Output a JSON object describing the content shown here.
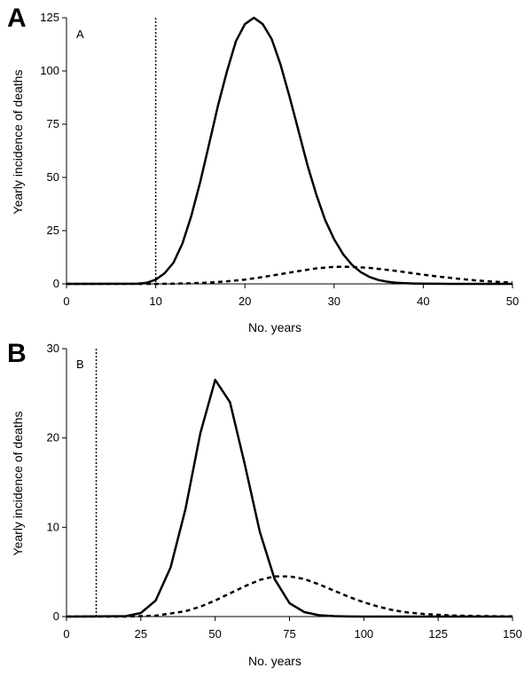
{
  "chart_data": [
    {
      "type": "line",
      "panel_letter": "A",
      "inset_label": "A",
      "xlabel": "No. years",
      "ylabel": "Yearly incidence of deaths",
      "xlim": [
        0,
        50
      ],
      "ylim": [
        0,
        125
      ],
      "x_ticks": [
        "0",
        "10",
        "20",
        "30",
        "40",
        "50"
      ],
      "y_ticks": [
        "0",
        "25",
        "50",
        "75",
        "100",
        "125"
      ],
      "grid": false,
      "legend": "none",
      "vline": {
        "x": 10,
        "style": "dotted"
      },
      "series": [
        {
          "style": "solid",
          "x": [
            0,
            8,
            9,
            10,
            11,
            12,
            13,
            14,
            15,
            16,
            17,
            18,
            19,
            20,
            21,
            22,
            23,
            24,
            25,
            26,
            27,
            28,
            29,
            30,
            31,
            32,
            33,
            34,
            35,
            36,
            37,
            38,
            39,
            40,
            42,
            44,
            46,
            48,
            50
          ],
          "y": [
            0,
            0.1,
            0.5,
            2,
            5,
            10,
            19,
            32,
            48,
            66,
            84,
            100,
            114,
            122,
            125,
            122,
            115,
            103,
            88,
            72,
            56,
            42,
            30,
            21,
            14,
            9,
            5.5,
            3.2,
            1.8,
            1,
            0.5,
            0.3,
            0.15,
            0.08,
            0.03,
            0,
            0,
            0,
            0
          ]
        },
        {
          "style": "dashed",
          "x": [
            0,
            10,
            12,
            14,
            16,
            18,
            20,
            22,
            24,
            26,
            28,
            30,
            32,
            34,
            36,
            38,
            40,
            42,
            44,
            46,
            48,
            50
          ],
          "y": [
            0,
            0,
            0.1,
            0.3,
            0.6,
            1.2,
            2,
            3.2,
            4.6,
            6,
            7.3,
            8,
            8,
            7.5,
            6.6,
            5.5,
            4.3,
            3.3,
            2.4,
            1.6,
            1,
            0.6
          ]
        }
      ]
    },
    {
      "type": "line",
      "panel_letter": "B",
      "inset_label": "B",
      "xlabel": "No. years",
      "ylabel": "Yearly incidence of deaths",
      "xlim": [
        0,
        150
      ],
      "ylim": [
        0,
        30
      ],
      "x_ticks": [
        "0",
        "25",
        "50",
        "75",
        "100",
        "125",
        "150"
      ],
      "y_ticks": [
        "0",
        "10",
        "20",
        "30"
      ],
      "grid": false,
      "legend": "none",
      "vline": {
        "x": 10,
        "style": "dotted"
      },
      "series": [
        {
          "style": "solid",
          "x": [
            0,
            20,
            25,
            30,
            35,
            40,
            45,
            50,
            55,
            60,
            65,
            70,
            75,
            80,
            85,
            90,
            95,
            100,
            110,
            150
          ],
          "y": [
            0,
            0.05,
            0.4,
            1.8,
            5.5,
            12,
            20.5,
            26.5,
            24,
            17,
            9.5,
            4.2,
            1.5,
            0.5,
            0.15,
            0.05,
            0.01,
            0,
            0,
            0
          ]
        },
        {
          "style": "dashed",
          "x": [
            0,
            20,
            30,
            40,
            45,
            50,
            55,
            60,
            65,
            70,
            75,
            80,
            85,
            90,
            95,
            100,
            105,
            110,
            115,
            120,
            125,
            130,
            140,
            150
          ],
          "y": [
            0,
            0,
            0.1,
            0.6,
            1.1,
            1.8,
            2.6,
            3.4,
            4.1,
            4.5,
            4.5,
            4.2,
            3.6,
            2.9,
            2.2,
            1.6,
            1.1,
            0.7,
            0.45,
            0.3,
            0.2,
            0.12,
            0.05,
            0.02
          ]
        }
      ]
    }
  ]
}
